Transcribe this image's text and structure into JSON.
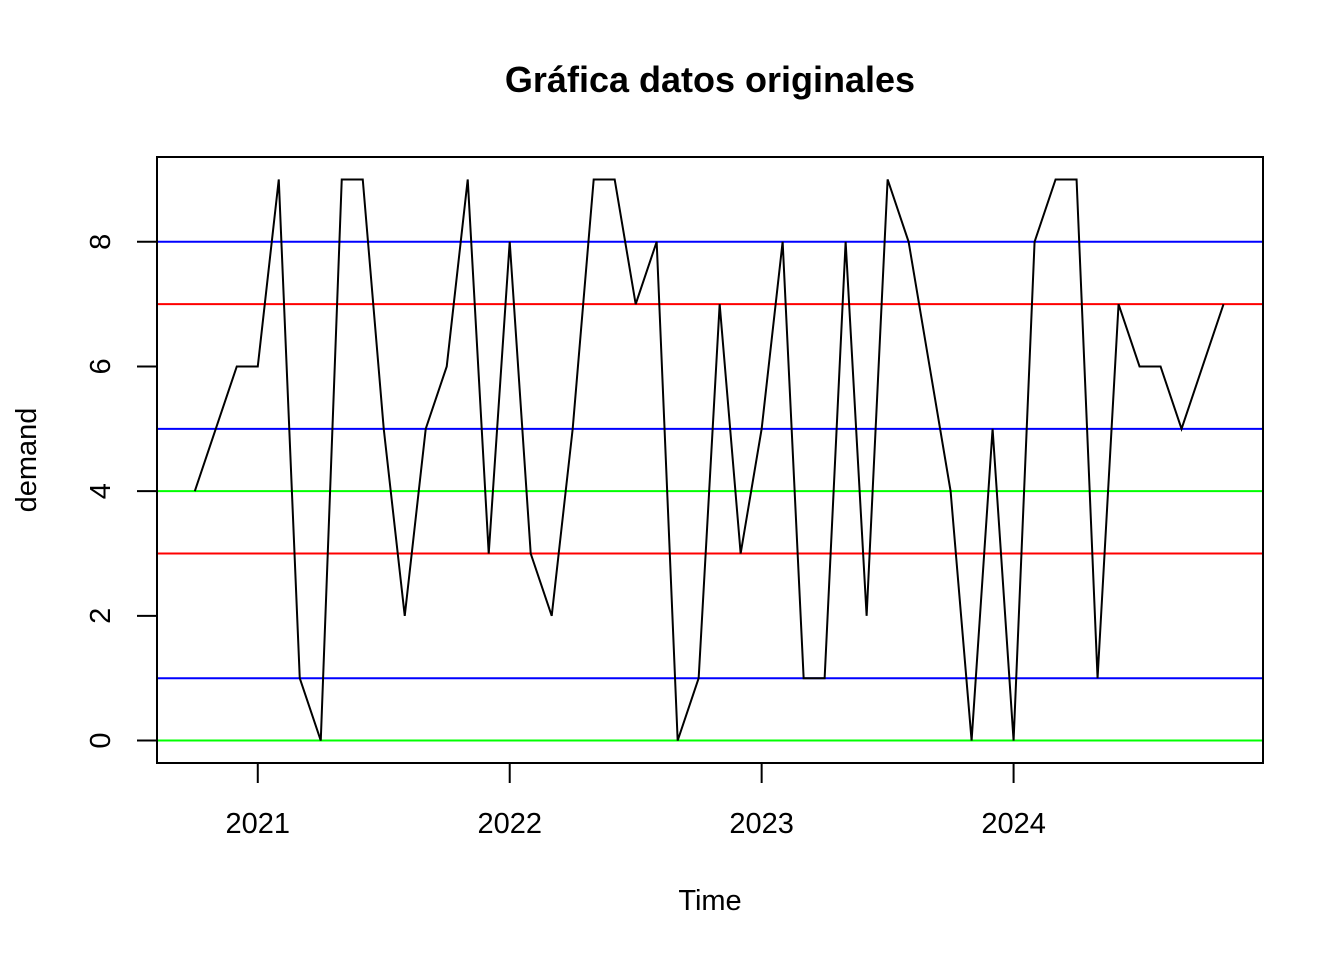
{
  "chart_data": {
    "type": "line",
    "title": "Gráfica datos originales",
    "xlabel": "Time",
    "ylabel": "demand",
    "xlim": [
      2020.6,
      2024.99
    ],
    "ylim": [
      -0.36,
      9.36
    ],
    "x_ticks": [
      2021,
      2022,
      2023,
      2024
    ],
    "x_tick_labels": [
      "2021",
      "2022",
      "2023",
      "2024"
    ],
    "y_ticks": [
      0,
      2,
      4,
      6,
      8
    ],
    "y_tick_labels": [
      "0",
      "2",
      "4",
      "6",
      "8"
    ],
    "grid": false,
    "legend": "none",
    "series": [
      {
        "color": "#000000",
        "x_start": "2020-10",
        "frequency": 12,
        "values": [
          4,
          5,
          6,
          6,
          9,
          1,
          0,
          9,
          9,
          5,
          2,
          5,
          6,
          9,
          3,
          8,
          3,
          2,
          5,
          9,
          9,
          7,
          8,
          0,
          1,
          7,
          3,
          5,
          8,
          1,
          1,
          8,
          2,
          9,
          8,
          6,
          4,
          0,
          5,
          0,
          8,
          9,
          9,
          1,
          7,
          6,
          6,
          5,
          6,
          7
        ]
      }
    ],
    "hlines": [
      {
        "y": 8,
        "color": "#0000ff"
      },
      {
        "y": 7,
        "color": "#ff0000"
      },
      {
        "y": 5,
        "color": "#0000ff"
      },
      {
        "y": 4,
        "color": "#00ff00"
      },
      {
        "y": 3,
        "color": "#ff0000"
      },
      {
        "y": 1,
        "color": "#0000ff"
      },
      {
        "y": 0,
        "color": "#00ff00"
      }
    ]
  }
}
